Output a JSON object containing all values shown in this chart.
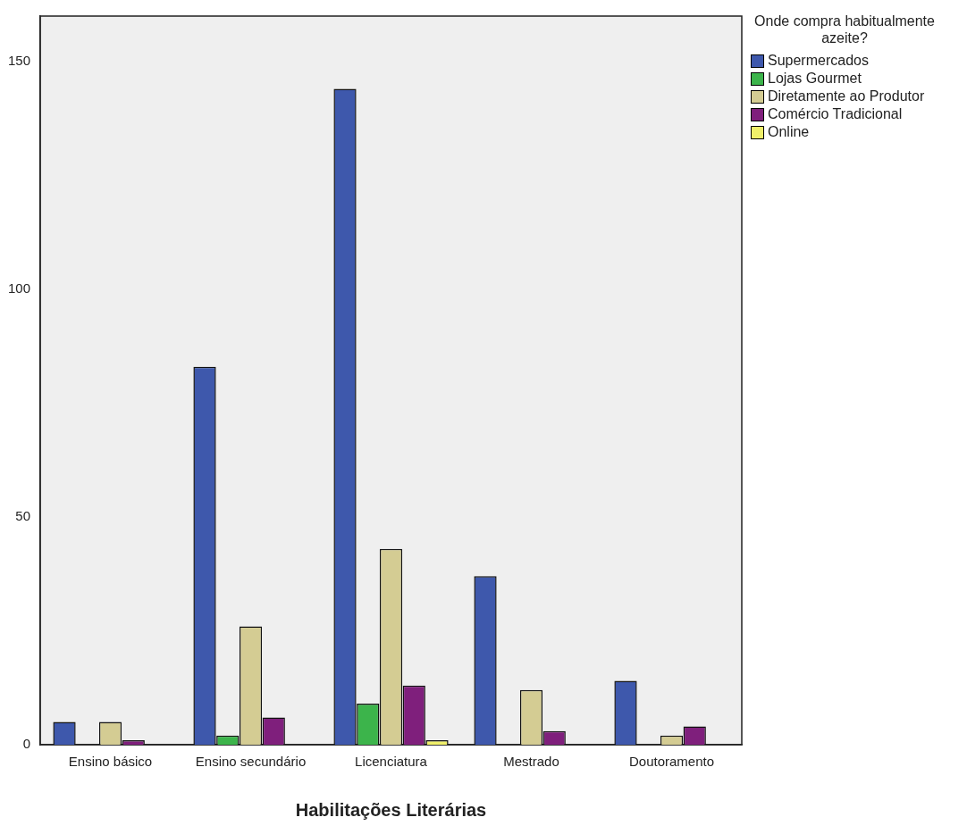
{
  "chart_data": {
    "type": "bar",
    "xlabel": "Habilitações Literárias",
    "legend_title": "Onde compra habitualmente azeite?",
    "categories": [
      "Ensino básico",
      "Ensino secundário",
      "Licenciatura",
      "Mestrado",
      "Doutoramento"
    ],
    "series": [
      {
        "name": "Supermercados",
        "color": "#3e58ac",
        "values": [
          5,
          83,
          144,
          37,
          14
        ]
      },
      {
        "name": "Lojas Gourmet",
        "color": "#3cb44b",
        "values": [
          0,
          2,
          9,
          0,
          0
        ]
      },
      {
        "name": "Diretamente ao Produtor",
        "color": "#d4cc93",
        "values": [
          5,
          26,
          43,
          12,
          2
        ]
      },
      {
        "name": "Comércio Tradicional",
        "color": "#7f1f7c",
        "values": [
          1,
          6,
          13,
          3,
          4
        ]
      },
      {
        "name": "Online",
        "color": "#f0f06a",
        "values": [
          0,
          0,
          1,
          0,
          0
        ]
      }
    ],
    "ylim": [
      0,
      160
    ],
    "yticks": [
      0,
      50,
      100,
      150
    ],
    "grid": false,
    "legend": "right"
  }
}
